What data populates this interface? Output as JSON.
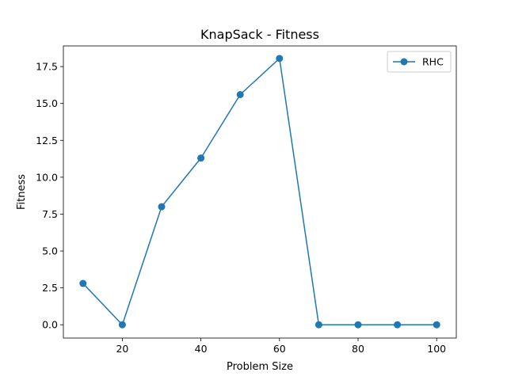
{
  "chart_data": {
    "type": "line",
    "title": "KnapSack - Fitness",
    "xlabel": "Problem Size",
    "ylabel": "Fitness",
    "xlim": [
      5,
      105
    ],
    "ylim": [
      -0.9,
      18.9
    ],
    "xticks": [
      20,
      40,
      60,
      80,
      100
    ],
    "xtick_labels": [
      "20",
      "40",
      "60",
      "80",
      "100"
    ],
    "yticks": [
      0,
      2.5,
      5,
      7.5,
      10,
      12.5,
      15,
      17.5
    ],
    "ytick_labels": [
      "0.0",
      "2.5",
      "5.0",
      "7.5",
      "10.0",
      "12.5",
      "15.0",
      "17.5"
    ],
    "grid": false,
    "legend_position": "top-right",
    "series": [
      {
        "name": "RHC",
        "color": "#1f77b4",
        "marker": "circle",
        "x": [
          10,
          20,
          30,
          40,
          50,
          60,
          70,
          80,
          90,
          100
        ],
        "y": [
          2.8,
          0,
          8,
          11.3,
          15.6,
          18.05,
          0,
          0,
          0,
          0
        ]
      }
    ]
  }
}
